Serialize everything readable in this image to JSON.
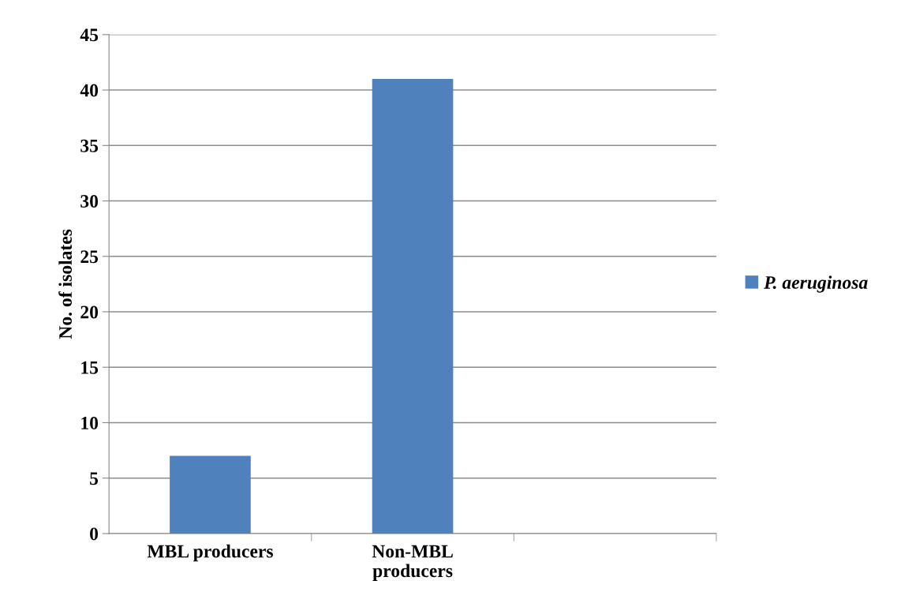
{
  "chart_data": {
    "type": "bar",
    "ylabel": "No. of isolates",
    "categories": [
      "MBL producers",
      "Non-MBL\nproducers",
      null
    ],
    "series": [
      {
        "name": "P. aeruginosa",
        "color": "#4f81bd",
        "values": [
          7,
          41,
          null
        ]
      }
    ],
    "ylim": [
      0,
      45
    ],
    "yticks": [
      0,
      5,
      10,
      15,
      20,
      25,
      30,
      35,
      40,
      45
    ],
    "grid": "y",
    "legend": "right"
  }
}
